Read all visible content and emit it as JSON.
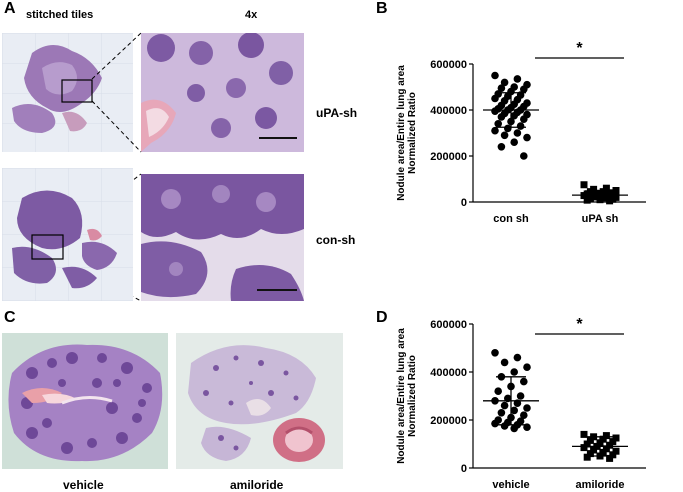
{
  "panels": {
    "A": {
      "letter": "A",
      "header_left": "stitched tiles",
      "header_right": "4x",
      "row_labels": [
        "uPA-sh",
        "con-sh"
      ]
    },
    "B": {
      "letter": "B"
    },
    "C": {
      "letter": "C",
      "image_labels": [
        "vehicle",
        "amiloride"
      ]
    },
    "D": {
      "letter": "D"
    }
  },
  "chart_data": [
    {
      "type": "scatter",
      "panel": "B",
      "ylabel_line1": "Nodule area/Entire lung area",
      "ylabel_line2": "Normalized Ratio",
      "ylim": [
        0,
        600000
      ],
      "yticks": [
        "0",
        "200000",
        "400000",
        "600000"
      ],
      "categories": [
        "con sh",
        "uPA sh"
      ],
      "significance": "*",
      "series": [
        {
          "marker": "circle",
          "mean": 400000,
          "sd": 75000,
          "values": [
            550000,
            535000,
            520000,
            510000,
            500000,
            495000,
            490000,
            480000,
            470000,
            465000,
            460000,
            450000,
            445000,
            440000,
            430000,
            425000,
            420000,
            415000,
            410000,
            405000,
            400000,
            400000,
            395000,
            390000,
            385000,
            380000,
            375000,
            370000,
            360000,
            350000,
            340000,
            330000,
            320000,
            310000,
            300000,
            290000,
            280000,
            260000,
            240000,
            200000
          ]
        },
        {
          "marker": "square",
          "mean": 30000,
          "sd": 18000,
          "values": [
            75000,
            60000,
            55000,
            50000,
            45000,
            45000,
            40000,
            38000,
            35000,
            32000,
            30000,
            28000,
            25000,
            22000,
            20000,
            18000,
            15000,
            12000,
            10000,
            8000,
            5000
          ]
        }
      ]
    },
    {
      "type": "scatter",
      "panel": "D",
      "ylabel_line1": "Nodule area/Entire lung area",
      "ylabel_line2": "Normalized Ratio",
      "ylim": [
        0,
        600000
      ],
      "yticks": [
        "0",
        "200000",
        "400000",
        "600000"
      ],
      "categories": [
        "vehicle",
        "amiloride"
      ],
      "significance": "*",
      "series": [
        {
          "marker": "circle",
          "mean": 280000,
          "sd": 100000,
          "values": [
            480000,
            460000,
            440000,
            420000,
            400000,
            380000,
            360000,
            340000,
            320000,
            300000,
            290000,
            280000,
            270000,
            260000,
            250000,
            240000,
            230000,
            220000,
            210000,
            200000,
            195000,
            190000,
            185000,
            180000,
            175000,
            170000,
            165000
          ]
        },
        {
          "marker": "square",
          "mean": 90000,
          "sd": 40000,
          "values": [
            140000,
            135000,
            130000,
            125000,
            120000,
            115000,
            110000,
            105000,
            100000,
            95000,
            90000,
            85000,
            80000,
            75000,
            70000,
            65000,
            60000,
            55000,
            50000,
            45000,
            40000
          ]
        }
      ]
    }
  ]
}
